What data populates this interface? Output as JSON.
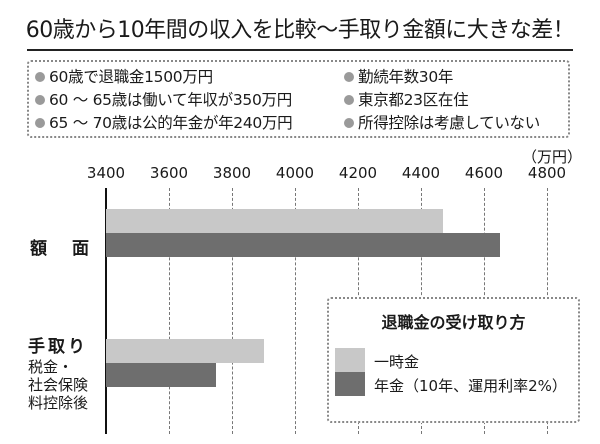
{
  "title": "60歳から10年間の収入を比較～手取り金額に大きな差！",
  "assumptions": {
    "left": [
      "60歳で退職金1500万円",
      "60 ～ 65歳は働いて年収が350万円",
      "65 ～ 70歳は公的年金が年240万円"
    ],
    "right": [
      "勤続年数30年",
      "東京都23区在住",
      "所得控除は考慮していない"
    ]
  },
  "colors": {
    "lump_sum": "#c8c8c8",
    "pension": "#6e6e6e",
    "bullet": "#9a9a9a",
    "grid": "#777777"
  },
  "chart_data": {
    "type": "bar",
    "orientation": "horizontal",
    "title": "60歳から10年間の収入を比較～手取り金額に大きな差！",
    "unit": "（万円）",
    "xlabel": "",
    "ylabel": "",
    "xlim": [
      3400,
      4800
    ],
    "ticks": [
      3400,
      3600,
      3800,
      4000,
      4200,
      4400,
      4600,
      4800
    ],
    "tick_labels": [
      "3400",
      "3600",
      "3800",
      "4000",
      "4200",
      "4400",
      "4600",
      "4800"
    ],
    "grid": true,
    "categories": [
      "額　面",
      "手取り（税金・社会保険料控除後）"
    ],
    "category_labels": {
      "gross": "額　面",
      "net": "手取り",
      "net_sub": [
        "税金・",
        "社会保険",
        "料控除後"
      ]
    },
    "legend_title": "退職金の受け取り方",
    "legend_position": "lower right",
    "series": [
      {
        "name": "一時金",
        "values": [
          4470,
          3900
        ]
      },
      {
        "name": "年金（10年、運用利率2%）",
        "values": [
          4650,
          3750
        ]
      }
    ]
  }
}
